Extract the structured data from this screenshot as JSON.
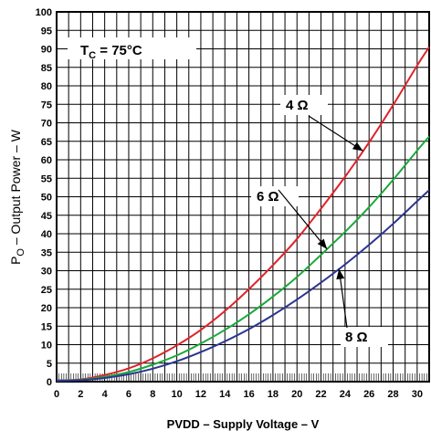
{
  "chart_data": {
    "type": "line",
    "title": "T_C = 75°C",
    "title_main": "T",
    "title_sub": "C",
    "title_rest": " = 75°C",
    "xlabel": "PVDD – Supply Voltage – V",
    "ylabel_main": "P",
    "ylabel_sub": "O",
    "ylabel_rest": " – Output Power – W",
    "xlim": [
      0,
      31
    ],
    "ylim": [
      0,
      100
    ],
    "x_ticks": [
      0,
      2,
      4,
      6,
      8,
      10,
      12,
      14,
      16,
      18,
      20,
      22,
      24,
      26,
      28,
      30
    ],
    "y_ticks": [
      0,
      5,
      10,
      15,
      20,
      25,
      30,
      35,
      40,
      45,
      50,
      55,
      60,
      65,
      70,
      75,
      80,
      85,
      90,
      95,
      100
    ],
    "grid": true,
    "series": [
      {
        "name": "4 Ω",
        "color": "#e0222a",
        "x": [
          0,
          2,
          4,
          6,
          8,
          10,
          12,
          14,
          16,
          18,
          20,
          22,
          24,
          26,
          28,
          30,
          31
        ],
        "values": [
          0.3,
          0.6,
          1.8,
          3.6,
          6.3,
          9.8,
          14.0,
          19.1,
          25.0,
          31.5,
          38.6,
          46.8,
          55.4,
          64.7,
          74.8,
          85.5,
          90.5
        ]
      },
      {
        "name": "6 Ω",
        "color": "#1aa83a",
        "x": [
          0,
          2,
          4,
          6,
          8,
          10,
          12,
          14,
          16,
          18,
          20,
          22,
          24,
          26,
          28,
          30,
          31
        ],
        "values": [
          0.3,
          0.5,
          1.3,
          2.6,
          4.6,
          7.1,
          10.3,
          14.0,
          18.2,
          23.0,
          28.3,
          34.3,
          40.5,
          47.2,
          54.6,
          62.5,
          66.3
        ]
      },
      {
        "name": "8 Ω",
        "color": "#2a3590",
        "x": [
          0,
          2,
          4,
          6,
          8,
          10,
          12,
          14,
          16,
          18,
          20,
          22,
          24,
          26,
          28,
          30,
          31
        ],
        "values": [
          0.3,
          0.4,
          1.0,
          2.0,
          3.5,
          5.5,
          8.0,
          10.9,
          14.2,
          18.0,
          22.2,
          26.8,
          31.7,
          37.0,
          42.7,
          48.8,
          51.8
        ]
      }
    ],
    "annotations": [
      {
        "series": 0,
        "label": "4 Ω",
        "at_x": 25.5
      },
      {
        "series": 1,
        "label": "6 Ω",
        "at_x": 22.5
      },
      {
        "series": 2,
        "label": "8 Ω",
        "at_x": 23.5
      }
    ]
  }
}
